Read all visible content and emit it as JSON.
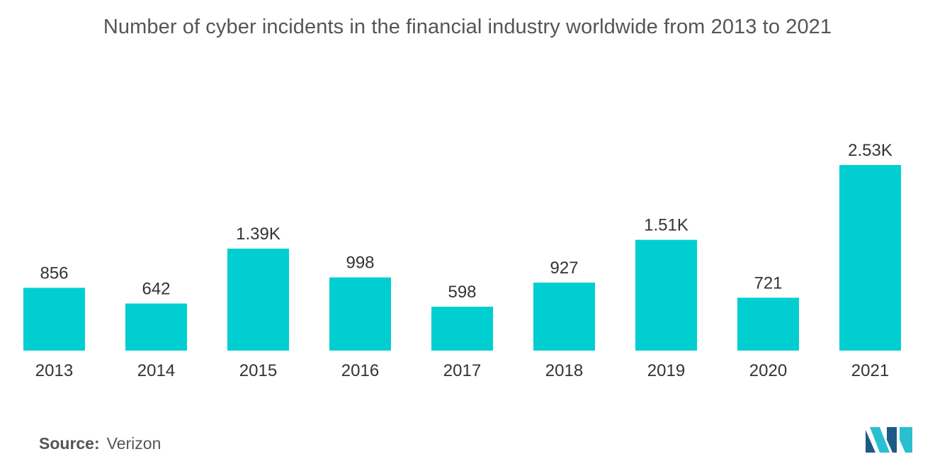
{
  "title": "Number of cyber incidents in the financial industry worldwide from 2013 to 2021",
  "source": {
    "label": "Source:",
    "value": "Verizon"
  },
  "logo_icon": "mordor-intelligence-logo",
  "colors": {
    "bar": "#00CED1",
    "text": "#333333",
    "title": "#555555",
    "logo_dark": "#1E5A86",
    "logo_light": "#2ABFD0"
  },
  "chart_data": {
    "type": "bar",
    "categories": [
      "2013",
      "2014",
      "2015",
      "2016",
      "2017",
      "2018",
      "2019",
      "2020",
      "2021"
    ],
    "values": [
      856,
      642,
      1390,
      998,
      598,
      927,
      1510,
      721,
      2530
    ],
    "data_labels": [
      "856",
      "642",
      "1.39K",
      "998",
      "598",
      "927",
      "1.51K",
      "721",
      "2.53K"
    ],
    "title": "Number of cyber incidents in the financial industry worldwide from 2013 to 2021",
    "xlabel": "",
    "ylabel": "",
    "grid": false,
    "legend": "none"
  }
}
